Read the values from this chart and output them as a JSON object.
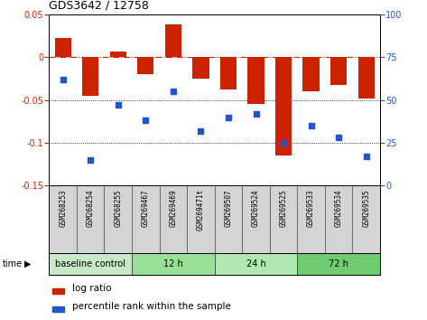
{
  "title": "GDS3642 / 12758",
  "samples": [
    "GSM268253",
    "GSM268254",
    "GSM268255",
    "GSM269467",
    "GSM269469",
    "GSM269471t",
    "GSM269507",
    "GSM269524",
    "GSM269525",
    "GSM269533",
    "GSM269534",
    "GSM269535"
  ],
  "log_ratio": [
    0.022,
    -0.045,
    0.007,
    -0.02,
    0.038,
    -0.025,
    -0.038,
    -0.055,
    -0.115,
    -0.04,
    -0.032,
    -0.048
  ],
  "percentile_rank": [
    62,
    15,
    47,
    38,
    55,
    32,
    40,
    42,
    25,
    35,
    28,
    17
  ],
  "ylim_left": [
    -0.15,
    0.05
  ],
  "ylim_right": [
    0,
    100
  ],
  "yticks_left": [
    0.05,
    0,
    -0.05,
    -0.1,
    -0.15
  ],
  "yticks_right": [
    100,
    75,
    50,
    25,
    0
  ],
  "bar_color": "#cc2200",
  "dot_color": "#2255cc",
  "groups": [
    {
      "label": "baseline control",
      "start": 0,
      "end": 3,
      "color": "#c8e8c8"
    },
    {
      "label": "12 h",
      "start": 3,
      "end": 6,
      "color": "#98e098"
    },
    {
      "label": "24 h",
      "start": 6,
      "end": 9,
      "color": "#b0e8b0"
    },
    {
      "label": "72 h",
      "start": 9,
      "end": 12,
      "color": "#70cc70"
    }
  ],
  "sample_box_color": "#d4d4d4",
  "legend_bar_color": "#cc2200",
  "legend_dot_color": "#2255cc",
  "bg_color": "#ffffff",
  "fig_width": 4.73,
  "fig_height": 3.54,
  "dpi": 100
}
